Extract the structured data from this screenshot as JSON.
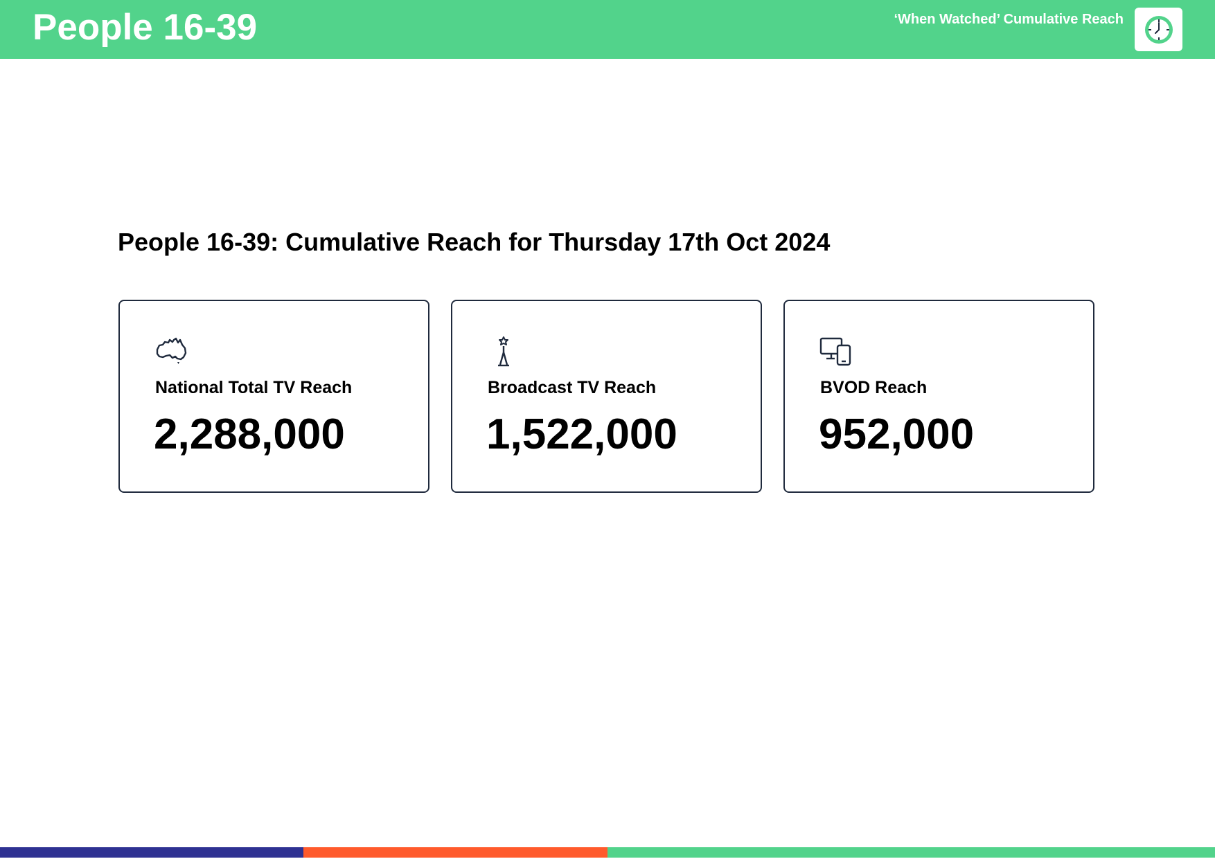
{
  "header": {
    "title": "People 16-39",
    "subtitle": "‘When Watched’ Cumulative Reach",
    "badge_icon": "clock-icon"
  },
  "main": {
    "title": "People 16-39: Cumulative Reach for Thursday 17th Oct 2024",
    "cards": [
      {
        "icon": "australia-map-icon",
        "label": "National Total TV Reach",
        "value": "2,288,000"
      },
      {
        "icon": "broadcast-tower-icon",
        "label": "Broadcast TV Reach",
        "value": "1,522,000"
      },
      {
        "icon": "devices-icon",
        "label": "BVOD Reach",
        "value": "952,000"
      }
    ]
  },
  "colors": {
    "brand_green": "#52d38b",
    "navy": "#2e3192",
    "orange": "#ff5a2c",
    "card_border": "#1f2a3d"
  }
}
